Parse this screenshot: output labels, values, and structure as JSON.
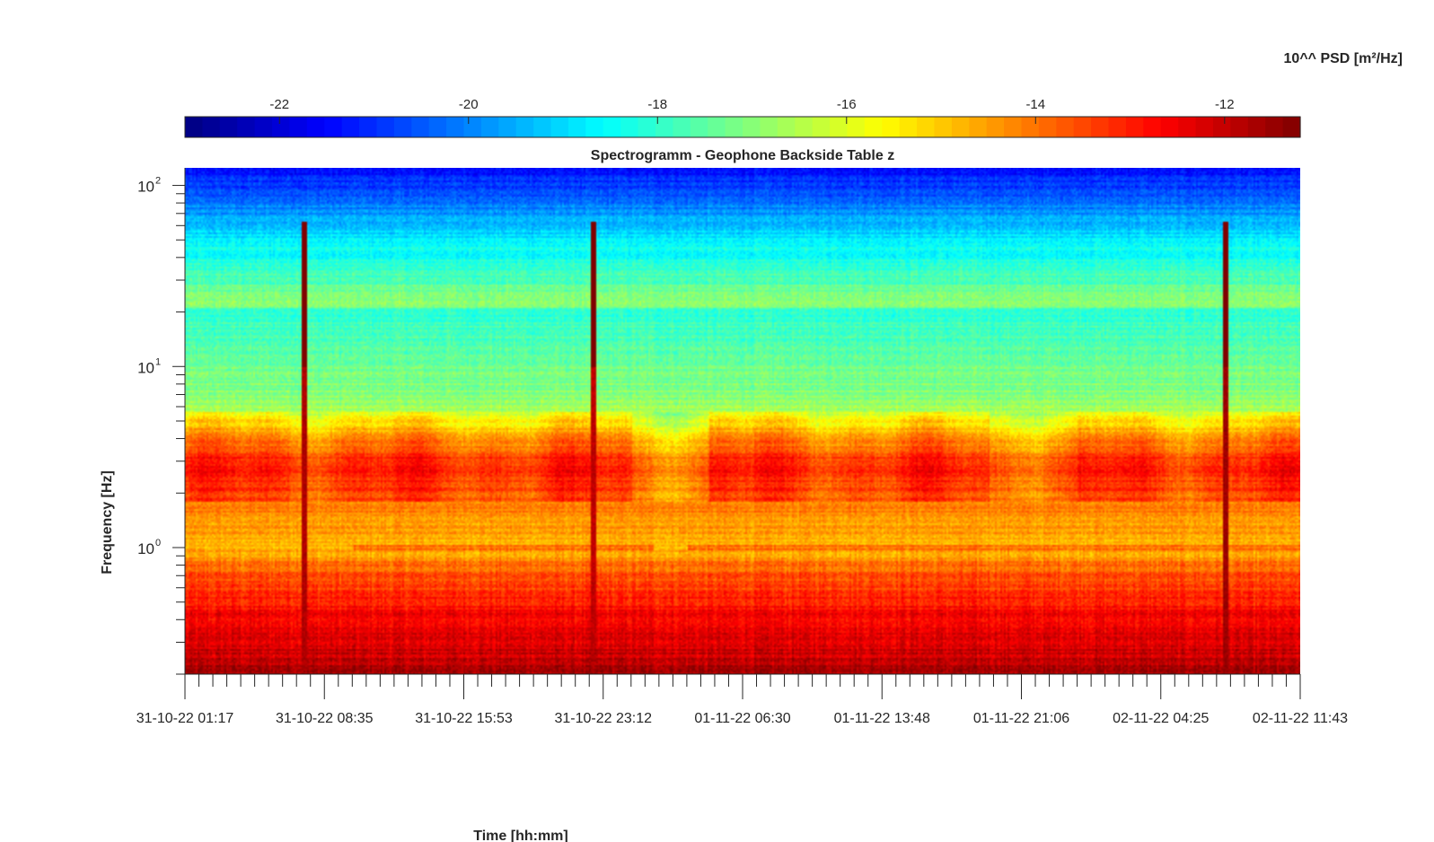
{
  "chart_data": {
    "type": "heatmap",
    "title": "Spectrogramm - Geophone Backside Table z",
    "xlabel": "Time [hh:mm]",
    "ylabel": "Frequency [Hz]",
    "colorbar": {
      "label": "10^^ PSD [m²/Hz]",
      "range": [
        -23,
        -11.2
      ],
      "ticks": [
        "-22",
        "-20",
        "-18",
        "-16",
        "-14",
        "-12"
      ],
      "tick_values": [
        -22,
        -20,
        -18,
        -16,
        -14,
        -12
      ],
      "colormap": "jet",
      "placement": "top"
    },
    "x_ticks": [
      "31-10-22 01:17",
      "31-10-22 08:35",
      "31-10-22 15:53",
      "31-10-22 23:12",
      "01-11-22 06:30",
      "01-11-22 13:48",
      "01-11-22 21:06",
      "02-11-22 04:25",
      "02-11-22 11:43"
    ],
    "y_scale": "log",
    "y_range_hz": [
      0.2,
      125
    ],
    "y_ticks": [
      {
        "base": "10",
        "exp": "0",
        "value": 1
      },
      {
        "base": "10",
        "exp": "1",
        "value": 10
      },
      {
        "base": "10",
        "exp": "2",
        "value": 100
      }
    ],
    "psd_profile": [
      {
        "freq_hz": 0.2,
        "log_psd": -11.8
      },
      {
        "freq_hz": 0.4,
        "log_psd": -12.5
      },
      {
        "freq_hz": 0.75,
        "log_psd": -13.8
      },
      {
        "freq_hz": 1.0,
        "log_psd": -14.8
      },
      {
        "freq_hz": 3.0,
        "log_psd": -13.5
      },
      {
        "freq_hz": 6.0,
        "log_psd": -16.8
      },
      {
        "freq_hz": 20.0,
        "log_psd": -18.0
      },
      {
        "freq_hz": 22.0,
        "log_psd": -17.0
      },
      {
        "freq_hz": 50.0,
        "log_psd": -18.8
      },
      {
        "freq_hz": 125.0,
        "log_psd": -21.5
      }
    ],
    "events": [
      {
        "time_fraction": 0.107,
        "log_psd": -12.0
      },
      {
        "time_fraction": 0.366,
        "log_psd": -12.2
      },
      {
        "time_fraction": 0.932,
        "log_psd": -11.8
      }
    ]
  }
}
